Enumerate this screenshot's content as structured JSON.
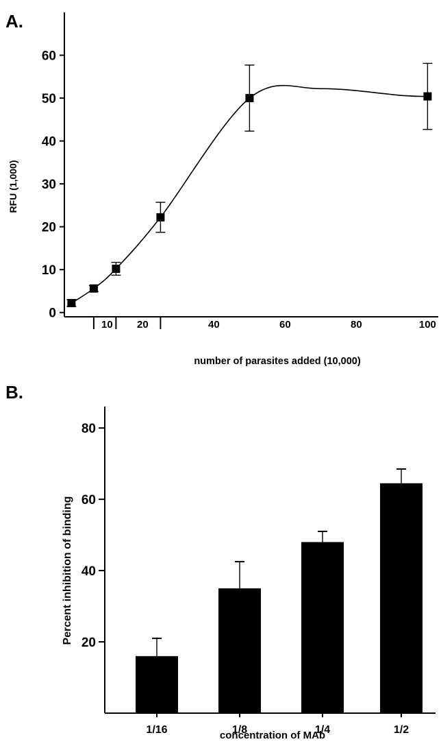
{
  "chart_data": [
    {
      "panel": "A.",
      "type": "line",
      "xlabel": "number of parasites added (10,000)",
      "ylabel": "RFU (1,000)",
      "xlim": [
        -2,
        103
      ],
      "ylim": [
        -1,
        70
      ],
      "x_ticks": [
        10,
        20,
        40,
        60,
        80,
        100
      ],
      "y_ticks": [
        0,
        10,
        20,
        30,
        40,
        50,
        60
      ],
      "series": [
        {
          "x": [
            0,
            6.25,
            12.5,
            25,
            50,
            100
          ],
          "y": [
            2.2,
            5.6,
            10.2,
            22.2,
            50,
            50.4
          ],
          "err": [
            0.8,
            0.7,
            1.5,
            3.5,
            7.7,
            7.7
          ]
        }
      ],
      "grid": false
    },
    {
      "panel": "B.",
      "type": "bar",
      "categories": [
        "1/16",
        "1/8",
        "1/4",
        "1/2"
      ],
      "values": [
        16,
        35,
        48,
        64.5
      ],
      "errors": [
        5,
        7.5,
        3,
        4
      ],
      "xlabel": "concentration of MAb",
      "ylabel": "Percent inhibition of binding",
      "ylim": [
        0,
        86
      ],
      "y_ticks": [
        20,
        40,
        60,
        80
      ],
      "grid": false
    }
  ]
}
